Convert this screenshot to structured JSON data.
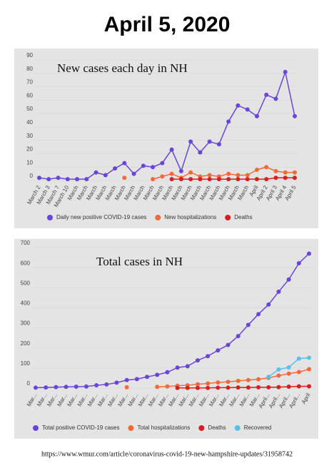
{
  "header": {
    "title": "April 5, 2020"
  },
  "chart_data": [
    {
      "type": "line",
      "title": "New cases each day in NH",
      "categories": [
        "March 2",
        "March 3",
        "March 7",
        "March 10",
        "March",
        "March",
        "March",
        "March",
        "March",
        "March",
        "March",
        "March",
        "March",
        "March",
        "March",
        "March",
        "March",
        "March",
        "March",
        "March",
        "March",
        "March",
        "March",
        "April",
        "April 2",
        "April 3",
        "April 4",
        "April 5"
      ],
      "ylim": [
        0,
        90
      ],
      "yticks": [
        0,
        10,
        20,
        30,
        40,
        50,
        60,
        70,
        80,
        90
      ],
      "series": [
        {
          "name": "Daily new positive COVID-19 cases",
          "color": "#6a45d6",
          "values": [
            2,
            1,
            2,
            1,
            1,
            1,
            6,
            4,
            9,
            13,
            5,
            11,
            10,
            13,
            23,
            7,
            29,
            21,
            29,
            27,
            44,
            56,
            53,
            48,
            64,
            61,
            81,
            48
          ]
        },
        {
          "name": "New hospitalizations",
          "color": "#f26a3a",
          "values": [
            null,
            null,
            null,
            null,
            null,
            null,
            null,
            null,
            null,
            2,
            null,
            null,
            1,
            3,
            5,
            2,
            6,
            3,
            4,
            3,
            5,
            4,
            4,
            8,
            10,
            7,
            6,
            6
          ]
        },
        {
          "name": "Deaths",
          "color": "#d81f1f",
          "values": [
            null,
            null,
            null,
            null,
            null,
            null,
            null,
            null,
            null,
            null,
            null,
            null,
            null,
            null,
            1,
            1,
            1,
            1,
            1,
            1,
            1,
            1,
            1,
            1,
            1,
            2,
            2,
            2
          ]
        }
      ]
    },
    {
      "type": "line",
      "title": "Total cases in NH",
      "categories": [
        "Mar...",
        "Mar...",
        "Mar...",
        "Mar...",
        "Mar...",
        "Mar...",
        "Mar...",
        "Mar...",
        "Mar...",
        "Mar...",
        "Mar...",
        "Mar...",
        "Mar...",
        "Mar...",
        "Mar...",
        "Mar...",
        "Mar...",
        "Mar...",
        "Mar...",
        "Mar...",
        "Mar...",
        "Mar...",
        "Mar...",
        "April...",
        "April...",
        "April...",
        "April...",
        "April"
      ],
      "ylim": [
        0,
        700
      ],
      "yticks": [
        0,
        100,
        200,
        300,
        400,
        500,
        600,
        700
      ],
      "series": [
        {
          "name": "Total positive COVID-19 cases",
          "color": "#6a45d6",
          "values": [
            2,
            3,
            5,
            6,
            7,
            8,
            14,
            18,
            27,
            40,
            45,
            56,
            66,
            79,
            102,
            109,
            138,
            159,
            188,
            215,
            259,
            315,
            368,
            416,
            480,
            541,
            622,
            670
          ]
        },
        {
          "name": "Total hospitalizations",
          "color": "#f26a3a",
          "values": [
            null,
            null,
            null,
            null,
            null,
            null,
            null,
            null,
            null,
            4,
            null,
            null,
            6,
            8,
            12,
            14,
            19,
            23,
            28,
            31,
            36,
            40,
            44,
            51,
            62,
            72,
            80,
            94
          ]
        },
        {
          "name": "Deaths",
          "color": "#d81f1f",
          "values": [
            null,
            null,
            null,
            null,
            null,
            null,
            null,
            null,
            null,
            null,
            null,
            null,
            null,
            null,
            1,
            1,
            1,
            1,
            2,
            2,
            3,
            3,
            4,
            4,
            5,
            7,
            9,
            9
          ]
        },
        {
          "name": "Recovered",
          "color": "#5bbfe8",
          "values": [
            null,
            null,
            null,
            null,
            null,
            null,
            null,
            null,
            null,
            null,
            null,
            null,
            null,
            null,
            null,
            null,
            null,
            null,
            null,
            null,
            null,
            null,
            null,
            56,
            93,
            103,
            147,
            151
          ]
        }
      ]
    }
  ],
  "footer": {
    "url": "https://www.wmur.com/article/coronavirus-covid-19-new-hampshire-updates/31958742"
  }
}
